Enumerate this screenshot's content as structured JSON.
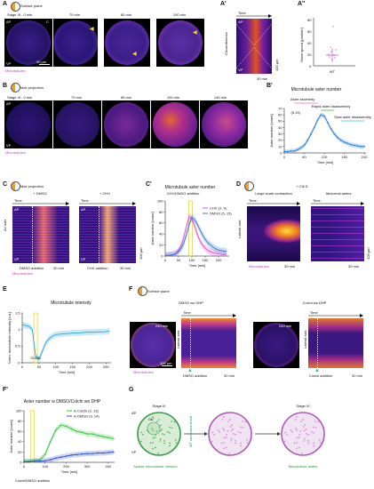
{
  "panelA": {
    "label": "A",
    "icon": "surface-plane-icon",
    "header": "Surface plane",
    "frames": [
      {
        "time": "Stage III - 0 min"
      },
      {
        "time": "70 min"
      },
      {
        "time": "85 min"
      },
      {
        "time": "100 min"
      }
    ],
    "ap": "AP",
    "vp": "VP",
    "marker": "C",
    "scalebar": "50 µm",
    "stain": "Microtubules"
  },
  "panelA1": {
    "label": "A'",
    "time": "Time",
    "yaxis": "Circumference",
    "ap": "AP",
    "vp": "VP",
    "scale_y": "100 µm",
    "scale_x": "30 min"
  },
  "panelA2": {
    "label": "A''",
    "ylabel": "Wave speed [µm/min]",
    "xcat": "WT",
    "yticks": [
      "0",
      "20",
      "40",
      "60",
      "80"
    ]
  },
  "panelB": {
    "label": "B",
    "icon": "max-projection-icon",
    "header": "Max projection",
    "frames": [
      {
        "time": "Stage III - 0 min"
      },
      {
        "time": "70 min"
      },
      {
        "time": "85 min"
      },
      {
        "time": "100 min"
      },
      {
        "time": "140 min"
      }
    ],
    "ap": "AP",
    "vp": "VP",
    "stain": "Microtubules"
  },
  "panelB1": {
    "label": "B'",
    "title": "Microtubule aster number",
    "ylabel": "Aster number [count]",
    "xlabel": "Time [min]",
    "annotations": [
      "Aster assembly",
      "Rapid aster disassembly",
      "Slow aster disassembly"
    ],
    "stats": "(5,15)"
  },
  "panelC": {
    "label": "C",
    "icon": "max-projection-icon",
    "header": "Max projection",
    "left": {
      "title": "+ DMSO",
      "time": "Time",
      "axis": "AV axis",
      "ap": "AP",
      "vp": "VP",
      "event": "DMSO addition",
      "scale_x": "30 min",
      "scale_y": "100 µm"
    },
    "right": {
      "title": "+ CHX",
      "time": "Time",
      "ap": "AP",
      "vp": "VP",
      "event": "CHX addition",
      "scale_x": "30 min",
      "scale_y": "100 µm"
    },
    "stain": "Microtubules"
  },
  "panelC1": {
    "label": "C'",
    "title": "Microtubule aster number",
    "subtitle": "CHX/DMSO addition",
    "ylabel": "Aster number [count]",
    "xlabel": "Time [min]",
    "legend": [
      "CHX",
      "DMSO"
    ],
    "legend_n": [
      "(3, 9)",
      "(5, 15)"
    ]
  },
  "panelD": {
    "label": "D",
    "header": "+ Cili D",
    "left": {
      "title": "Large-scale contraction",
      "time": "Time",
      "axis": "Lateral axis",
      "scale_x": "30 min",
      "scale_y": "100 µm"
    },
    "right": {
      "title": "Abnormal asters",
      "time": "Time",
      "scale_x": "30 min",
      "scale_y": "100 µm"
    },
    "stain": "Microtubules"
  },
  "panelE": {
    "label": "E",
    "title": "Microtubule intensity",
    "ylabel": "Norm. microtubule intensity [a.u.]",
    "xlabel": "Time [min]",
    "event": "GVBD"
  },
  "panelF": {
    "label": "F",
    "icon": "surface-plane-icon",
    "header": "Surface plane",
    "left": {
      "title": "DMSO wo DHP",
      "frame_time": "240 min",
      "scalebar": "100 µm",
      "time": "Time",
      "axis": "Lateral axis",
      "event": "DMSO addition",
      "scale_x": "30 min"
    },
    "right": {
      "title": "Colchi wo DHP",
      "frame_time": "240 min",
      "time": "Time",
      "axis": "Lateral axis",
      "event": "Colchi addition",
      "scale_x": "30 min"
    },
    "stain": "Microtubules"
  },
  "panelF1": {
    "label": "F'",
    "title": "Aster number w DMSO/Colchi wo DHP",
    "ylabel": "Aster number [count]",
    "xlabel": "Time [min]",
    "event": "Colchi/DMSO addition",
    "legend": [
      "w Colchi",
      "w DMSO"
    ],
    "legend_n": [
      "(3, 13)",
      "(3, 14)"
    ]
  },
  "panelG": {
    "label": "G",
    "stage3": "Stage III",
    "stage4": "Stage IV",
    "ap": "AP",
    "vp": "VP",
    "gv": "GV",
    "caption1": "Sparse microtubule network",
    "caption2": "Microtubule asters",
    "arrow": "MT nucleation burst"
  },
  "chart_data": [
    {
      "type": "line",
      "title": "Microtubule aster number",
      "xlabel": "Time [min]",
      "ylabel": "Aster number [count]",
      "x": [
        0,
        10,
        20,
        30,
        40,
        50,
        60,
        70,
        80,
        90,
        100,
        110,
        120,
        130,
        140,
        150,
        160,
        170,
        180,
        190,
        200,
        210,
        220,
        230,
        240
      ],
      "series": [
        {
          "values": [
            2,
            2,
            3,
            3,
            5,
            8,
            12,
            20,
            30,
            40,
            52,
            60,
            58,
            48,
            38,
            30,
            24,
            20,
            17,
            15,
            13,
            12,
            11,
            10,
            10
          ]
        }
      ],
      "xticks": [
        0,
        60,
        120,
        180,
        240
      ],
      "yticks": [
        0,
        10,
        20,
        30,
        40,
        50,
        60,
        70
      ],
      "xlim": [
        0,
        245
      ],
      "ylim": [
        0,
        70
      ],
      "colors": [
        "#2b7bd1"
      ]
    },
    {
      "type": "line",
      "title": "Microtubule aster number",
      "xlabel": "Time [min]",
      "ylabel": "Aster number [count]",
      "x": [
        0,
        10,
        20,
        30,
        40,
        50,
        60,
        70,
        80,
        90,
        100,
        110,
        120,
        130,
        140,
        150,
        160,
        170,
        180,
        190,
        200,
        210,
        220,
        230
      ],
      "series": [
        {
          "name": "CHX",
          "values": [
            1,
            1,
            2,
            3,
            5,
            10,
            20,
            35,
            55,
            72,
            68,
            55,
            40,
            28,
            20,
            14,
            10,
            8,
            6,
            5,
            4,
            3,
            3,
            3
          ]
        },
        {
          "name": "DMSO",
          "values": [
            1,
            1,
            2,
            2,
            4,
            8,
            14,
            24,
            40,
            58,
            70,
            66,
            58,
            48,
            38,
            30,
            24,
            20,
            16,
            13,
            11,
            10,
            9,
            9
          ]
        }
      ],
      "xticks": [
        0,
        50,
        100,
        150,
        200
      ],
      "yticks": [
        0,
        20,
        40,
        60,
        80,
        100
      ],
      "xlim": [
        0,
        240
      ],
      "ylim": [
        0,
        100
      ],
      "colors": [
        "#e050d8",
        "#2b7bd1"
      ],
      "event_x": 95
    },
    {
      "type": "line",
      "title": "Microtubule intensity",
      "xlabel": "Time [min]",
      "ylabel": "Norm. microtubule intensity [a.u.]",
      "x": [
        0,
        10,
        20,
        30,
        40,
        50,
        60,
        70,
        80,
        90,
        100,
        110,
        120,
        130,
        140,
        150,
        160,
        170,
        180,
        190,
        200,
        210,
        220,
        230,
        240,
        250,
        260
      ],
      "series": [
        {
          "values": [
            1.15,
            1.12,
            1.1,
            1.0,
            0.2,
            0.1,
            0.35,
            0.6,
            0.72,
            0.8,
            0.85,
            0.86,
            0.87,
            0.88,
            0.88,
            0.9,
            0.9,
            0.9,
            0.91,
            0.92,
            0.92,
            0.92,
            0.93,
            0.93,
            0.93,
            0.94,
            0.95
          ]
        }
      ],
      "xticks": [
        0,
        50,
        100,
        150,
        200,
        250
      ],
      "yticks": [
        0,
        0.5,
        1,
        1.5
      ],
      "xlim": [
        0,
        265
      ],
      "ylim": [
        0,
        1.5
      ],
      "colors": [
        "#2aa6d9"
      ],
      "event_x": 40
    },
    {
      "type": "line",
      "title": "Aster number w DMSO/Colchi wo DHP",
      "xlabel": "Time [min]",
      "ylabel": "Aster number [count]",
      "x": [
        0,
        25,
        50,
        75,
        100,
        125,
        150,
        175,
        200,
        225,
        250,
        275,
        300,
        325,
        350,
        375,
        400,
        425
      ],
      "series": [
        {
          "name": "w Colchi",
          "values": [
            2,
            2,
            3,
            5,
            15,
            40,
            62,
            72,
            70,
            65,
            60,
            58,
            55,
            55,
            52,
            50,
            48,
            46
          ]
        },
        {
          "name": "w DMSO",
          "values": [
            1,
            1,
            2,
            2,
            3,
            5,
            8,
            10,
            12,
            14,
            15,
            16,
            17,
            17,
            18,
            18,
            19,
            20
          ]
        }
      ],
      "xticks": [
        0,
        100,
        200,
        300,
        400
      ],
      "yticks": [
        0,
        20,
        40,
        60,
        80,
        100
      ],
      "xlim": [
        0,
        430
      ],
      "ylim": [
        0,
        100
      ],
      "colors": [
        "#36c240",
        "#2b4fd1"
      ],
      "event_x": 40
    }
  ]
}
